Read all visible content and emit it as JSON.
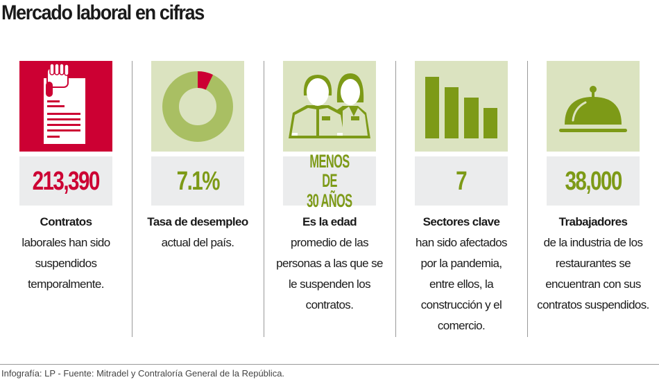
{
  "title": "Mercado laboral en cifras",
  "colors": {
    "red": "#cc0033",
    "green": "#7d9a17",
    "light_green": "#dbe3c0",
    "light_olive": "#a9bf63",
    "gray_box": "#ebeced"
  },
  "items": [
    {
      "icon": "clipboard-hand-icon",
      "value": "213,390",
      "heading": "Contratos",
      "text": [
        "laborales han sido",
        "suspendidos",
        "temporalmente."
      ]
    },
    {
      "icon": "donut-chart-icon",
      "value": "7.1%",
      "donut_percent": 7.1,
      "heading": "Tasa de desempleo",
      "text": [
        "actual del país."
      ]
    },
    {
      "icon": "people-icon",
      "value_lines": [
        "MENOS DE",
        "30 AÑOS"
      ],
      "heading": "Es la edad",
      "text": [
        "promedio de las",
        "personas  a las que se",
        "le suspenden los",
        "contratos."
      ]
    },
    {
      "icon": "bar-chart-icon",
      "value": "7",
      "heading": "Sectores clave",
      "text": [
        "han sido  afectados",
        "por la pandemia,",
        "entre ellos, la",
        "construcción y el",
        "comercio."
      ]
    },
    {
      "icon": "food-cloche-icon",
      "value": "38,000",
      "heading": "Trabajadores",
      "text": [
        "de la industria de los",
        "restaurantes se",
        "encuentran con sus",
        "contratos suspendidos."
      ]
    }
  ],
  "footer": "Infografía: LP - Fuente: Mitradel y Contraloría General de la República."
}
